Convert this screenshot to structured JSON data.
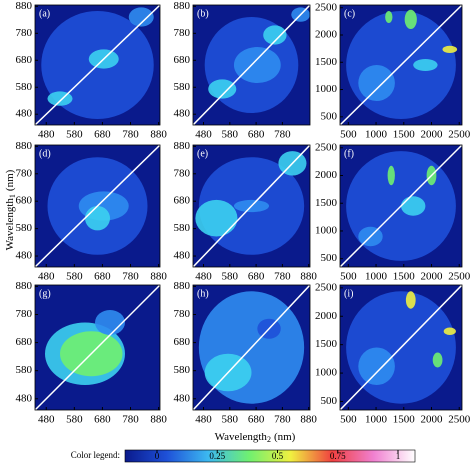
{
  "chart_data": [
    {
      "type": "heatmap",
      "title": "(a)",
      "xlim": [
        440,
        885
      ],
      "ylim": [
        440,
        885
      ],
      "xticks": [
        480,
        580,
        680,
        780,
        880
      ],
      "yticks": [
        480,
        580,
        680,
        780,
        880
      ]
    },
    {
      "type": "heatmap",
      "title": "(b)",
      "xlim": [
        440,
        885
      ],
      "ylim": [
        440,
        885
      ],
      "xticks": [
        480,
        580,
        680,
        780
      ],
      "yticks": [
        480,
        580,
        680,
        780,
        880
      ]
    },
    {
      "type": "heatmap",
      "title": "(c)",
      "xlim": [
        350,
        2550
      ],
      "ylim": [
        350,
        2550
      ],
      "xticks": [
        500,
        1000,
        1500,
        2000,
        2500
      ],
      "yticks": [
        500,
        1000,
        1500,
        2000,
        2500
      ]
    },
    {
      "type": "heatmap",
      "title": "(d)",
      "xlim": [
        440,
        885
      ],
      "ylim": [
        440,
        885
      ],
      "xticks": [
        480,
        580,
        680,
        780,
        880
      ],
      "yticks": [
        480,
        580,
        680,
        780,
        880
      ]
    },
    {
      "type": "heatmap",
      "title": "(e)",
      "xlim": [
        440,
        885
      ],
      "ylim": [
        440,
        885
      ],
      "xticks": [
        480,
        580,
        680,
        780,
        880
      ],
      "yticks": [
        480,
        580,
        680,
        780,
        880
      ]
    },
    {
      "type": "heatmap",
      "title": "(f)",
      "xlim": [
        350,
        2550
      ],
      "ylim": [
        350,
        2550
      ],
      "xticks": [
        500,
        1000,
        1500,
        2000,
        2500
      ],
      "yticks": [
        500,
        1000,
        1500,
        2000,
        2500
      ]
    },
    {
      "type": "heatmap",
      "title": "(g)",
      "xlim": [
        440,
        885
      ],
      "ylim": [
        440,
        885
      ],
      "xticks": [
        480,
        580,
        680,
        780,
        880
      ],
      "yticks": [
        480,
        580,
        680,
        780,
        880
      ]
    },
    {
      "type": "heatmap",
      "title": "(h)",
      "xlim": [
        440,
        885
      ],
      "ylim": [
        440,
        885
      ],
      "xticks": [
        480,
        580,
        680,
        780,
        880
      ],
      "yticks": [
        480,
        580,
        680,
        780,
        880
      ]
    },
    {
      "type": "heatmap",
      "title": "(i)",
      "xlim": [
        350,
        2550
      ],
      "ylim": [
        350,
        2550
      ],
      "xticks": [
        500,
        1000,
        1500,
        2000,
        2500
      ],
      "yticks": [
        500,
        1000,
        1500,
        2000,
        2500
      ]
    }
  ],
  "xlabel": {
    "text": "Wavelength",
    "sub": "2",
    "unit": "(nm)"
  },
  "ylabel": {
    "text": "Wavelength",
    "sub": "1",
    "unit": "(nm)"
  },
  "color_legend": {
    "label": "Color legend:",
    "clim": [
      0,
      1
    ],
    "ticks": [
      0,
      0.25,
      0.5,
      0.75,
      1
    ],
    "colors": [
      "#0a1a8c",
      "#1e50d8",
      "#3cb8f0",
      "#70f070",
      "#f0f040",
      "#f04040",
      "#f080d0",
      "#ffffff"
    ]
  }
}
